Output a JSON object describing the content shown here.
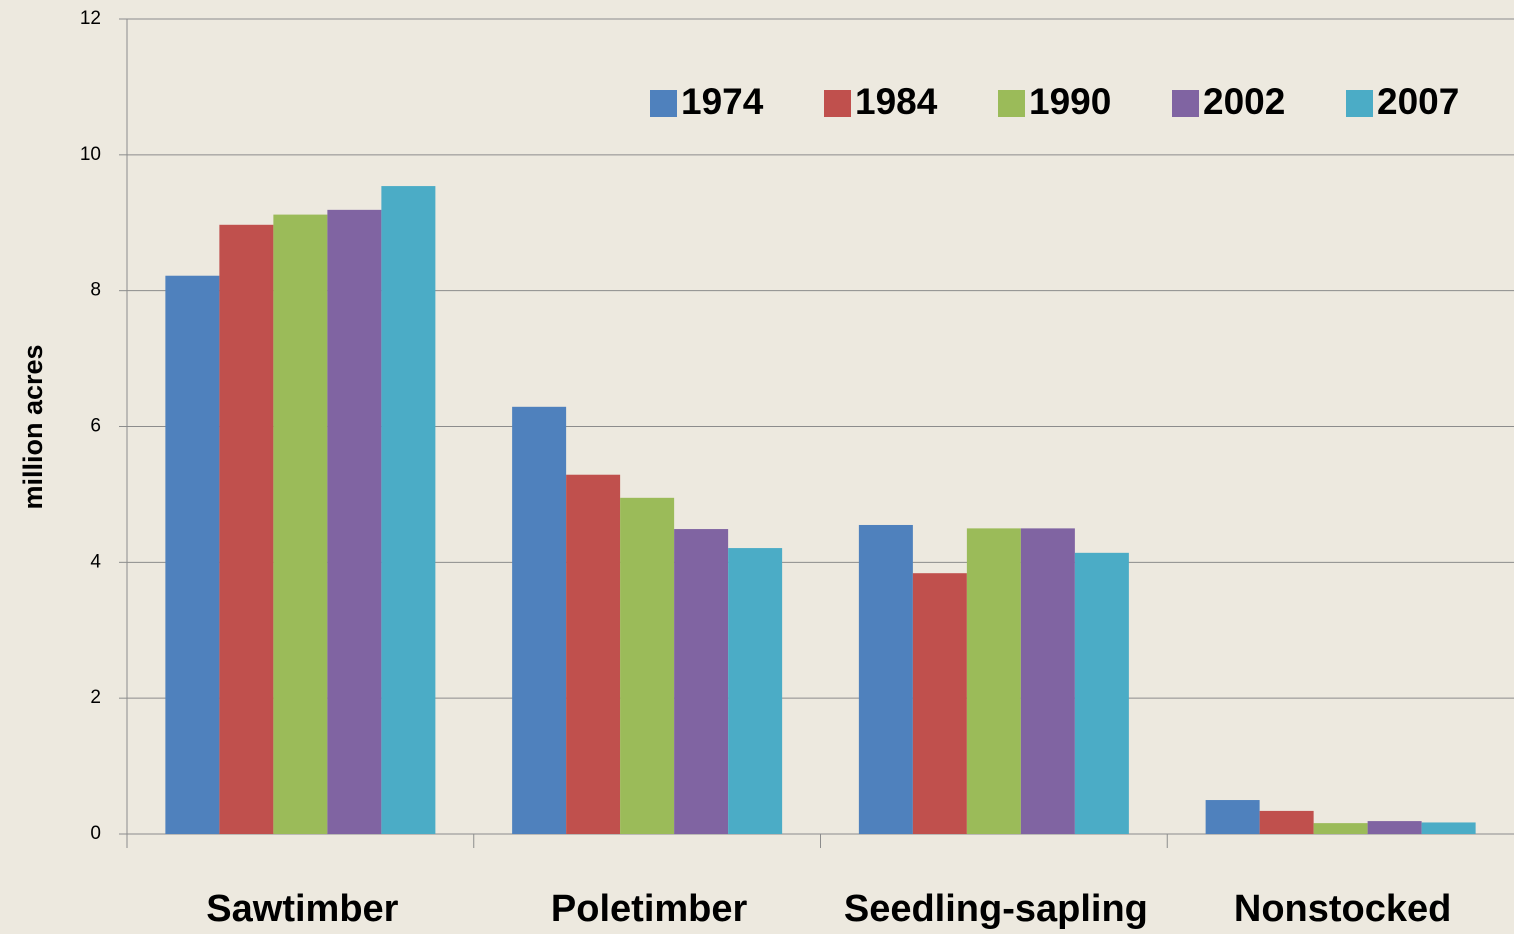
{
  "chart_data": {
    "type": "bar",
    "y_label": "million acres",
    "categories": [
      "Sawtimber",
      "Poletimber",
      "Seedling-sapling",
      "Nonstocked"
    ],
    "series": [
      {
        "name": "1974",
        "color": "#4f81bd",
        "values": [
          8.22,
          6.29,
          4.55,
          0.5
        ]
      },
      {
        "name": "1984",
        "color": "#c0504d",
        "values": [
          8.97,
          5.29,
          3.84,
          0.34
        ]
      },
      {
        "name": "1990",
        "color": "#9bbb59",
        "values": [
          9.12,
          4.95,
          4.5,
          0.16
        ]
      },
      {
        "name": "2002",
        "color": "#8064a2",
        "values": [
          9.19,
          4.49,
          4.5,
          0.19
        ]
      },
      {
        "name": "2007",
        "color": "#4bacc6",
        "values": [
          9.54,
          4.21,
          4.14,
          0.17
        ]
      }
    ],
    "ylim": [
      0,
      12
    ],
    "yticks": [
      0,
      2,
      4,
      6,
      8,
      10,
      12
    ],
    "grid": true
  }
}
